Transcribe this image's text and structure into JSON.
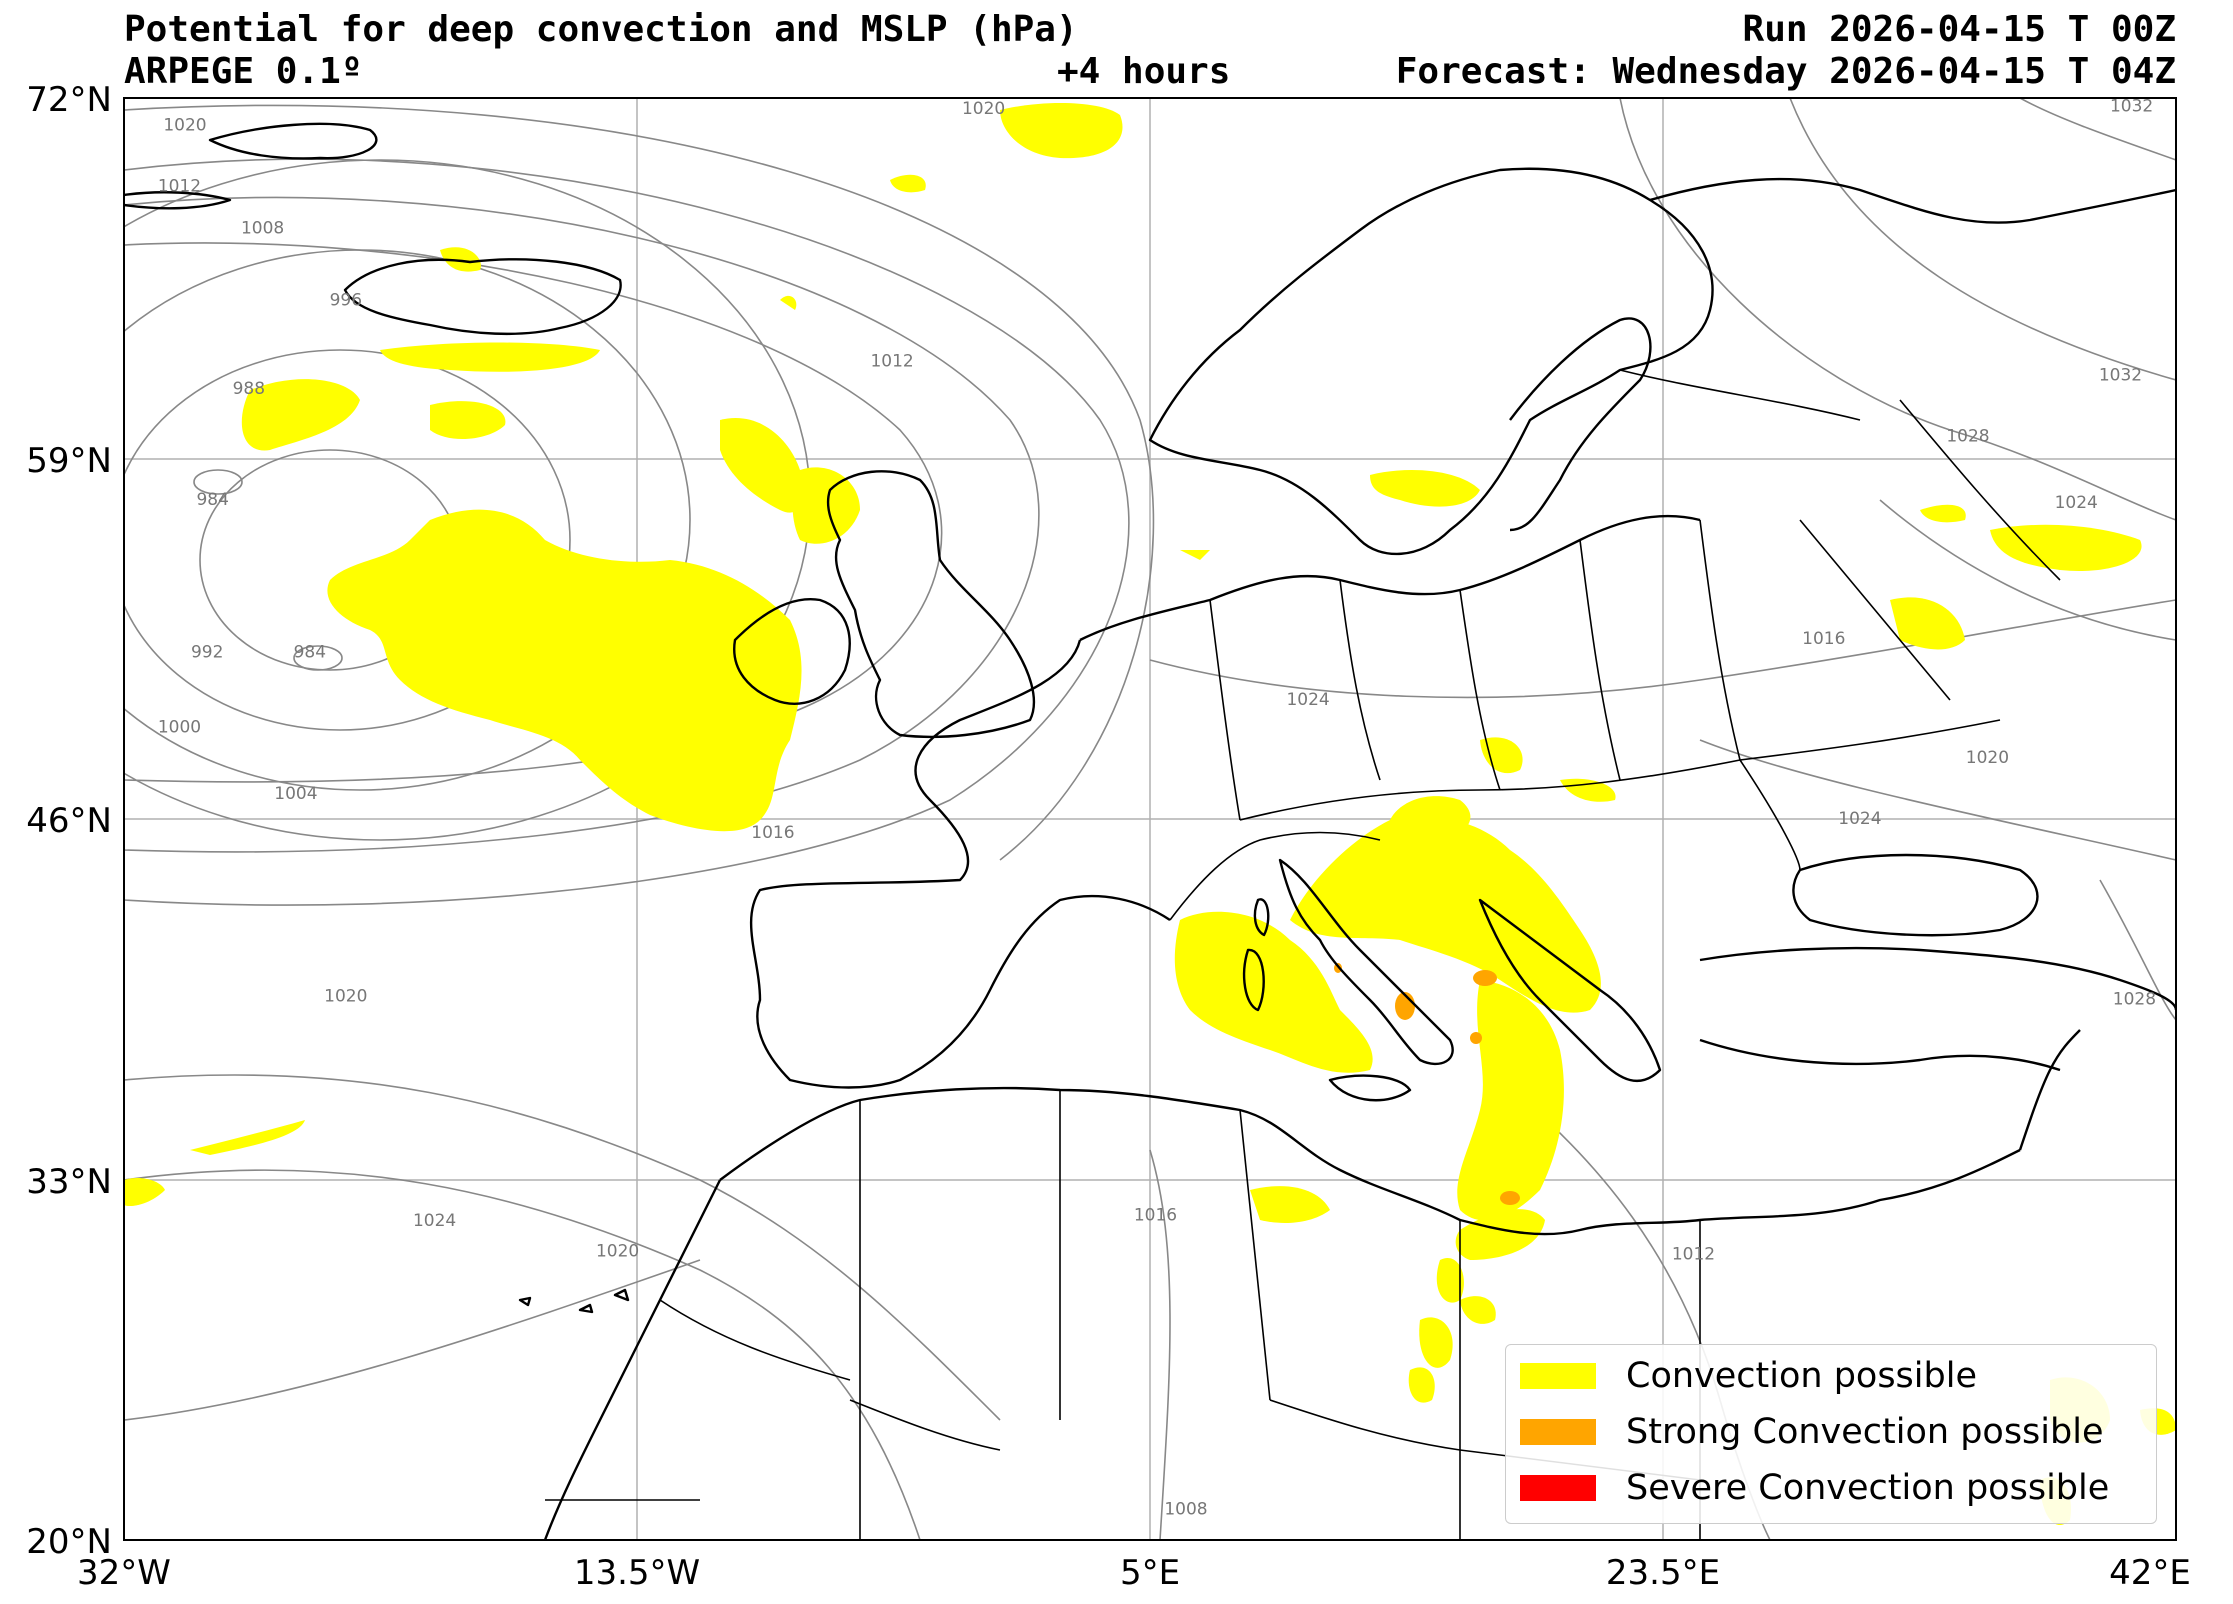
{
  "header": {
    "title": "Potential for deep convection and MSLP (hPa)",
    "model": "ARPEGE 0.1º",
    "run": "Run 2026-04-15 T 00Z",
    "lead": "+4 hours",
    "forecast": "Forecast: Wednesday 2026-04-15 T 04Z"
  },
  "axes": {
    "lat_ticks": [
      "72°N",
      "59°N",
      "46°N",
      "33°N",
      "20°N"
    ],
    "lon_ticks": [
      "32°W",
      "13.5°W",
      "5°E",
      "23.5°E",
      "42°E"
    ]
  },
  "extent": {
    "lon_min": -32,
    "lon_max": 42,
    "lat_min": 20,
    "lat_max": 72
  },
  "isobar_labels": [
    {
      "text": "1020",
      "lon": -29.8,
      "lat": 71.0
    },
    {
      "text": "1012",
      "lon": -30.0,
      "lat": 68.8
    },
    {
      "text": "1008",
      "lon": -27.0,
      "lat": 67.3
    },
    {
      "text": "996",
      "lon": -24.0,
      "lat": 64.7
    },
    {
      "text": "988",
      "lon": -27.5,
      "lat": 61.5
    },
    {
      "text": "984",
      "lon": -28.8,
      "lat": 57.5
    },
    {
      "text": "984",
      "lon": -25.3,
      "lat": 52.0
    },
    {
      "text": "992",
      "lon": -29.0,
      "lat": 52.0
    },
    {
      "text": "1000",
      "lon": -30.0,
      "lat": 49.3
    },
    {
      "text": "1004",
      "lon": -25.8,
      "lat": 46.9
    },
    {
      "text": "1016",
      "lon": -8.6,
      "lat": 45.5
    },
    {
      "text": "1012",
      "lon": -4.3,
      "lat": 62.5
    },
    {
      "text": "1020",
      "lon": -1.0,
      "lat": 71.6
    },
    {
      "text": "1020",
      "lon": -24.0,
      "lat": 39.6
    },
    {
      "text": "1024",
      "lon": -20.8,
      "lat": 31.5
    },
    {
      "text": "1020",
      "lon": -14.2,
      "lat": 30.4
    },
    {
      "text": "1024",
      "lon": 10.7,
      "lat": 50.3
    },
    {
      "text": "1016",
      "lon": 5.2,
      "lat": 31.7
    },
    {
      "text": "1008",
      "lon": 6.3,
      "lat": 21.1
    },
    {
      "text": "1012",
      "lon": 24.6,
      "lat": 30.3
    },
    {
      "text": "1032",
      "lon": 40.4,
      "lat": 71.7
    },
    {
      "text": "1032",
      "lon": 40.0,
      "lat": 62.0
    },
    {
      "text": "1028",
      "lon": 34.5,
      "lat": 59.8
    },
    {
      "text": "1024",
      "lon": 38.4,
      "lat": 57.4
    },
    {
      "text": "1016",
      "lon": 29.3,
      "lat": 52.5
    },
    {
      "text": "1020",
      "lon": 35.2,
      "lat": 48.2
    },
    {
      "text": "1024",
      "lon": 30.6,
      "lat": 46.0
    },
    {
      "text": "1028",
      "lon": 40.5,
      "lat": 39.5
    }
  ],
  "legend": {
    "items": [
      {
        "label": "Convection possible",
        "color": "#ffff00"
      },
      {
        "label": "Strong Convection possible",
        "color": "#ffa500"
      },
      {
        "label": "Severe Convection possible",
        "color": "#ff0000"
      }
    ]
  },
  "colors": {
    "convection": "#ffff00",
    "strong": "#ffa500",
    "severe": "#ff0000",
    "isobar": "#888888",
    "coast": "#000000",
    "grid": "#b0b0b0"
  }
}
